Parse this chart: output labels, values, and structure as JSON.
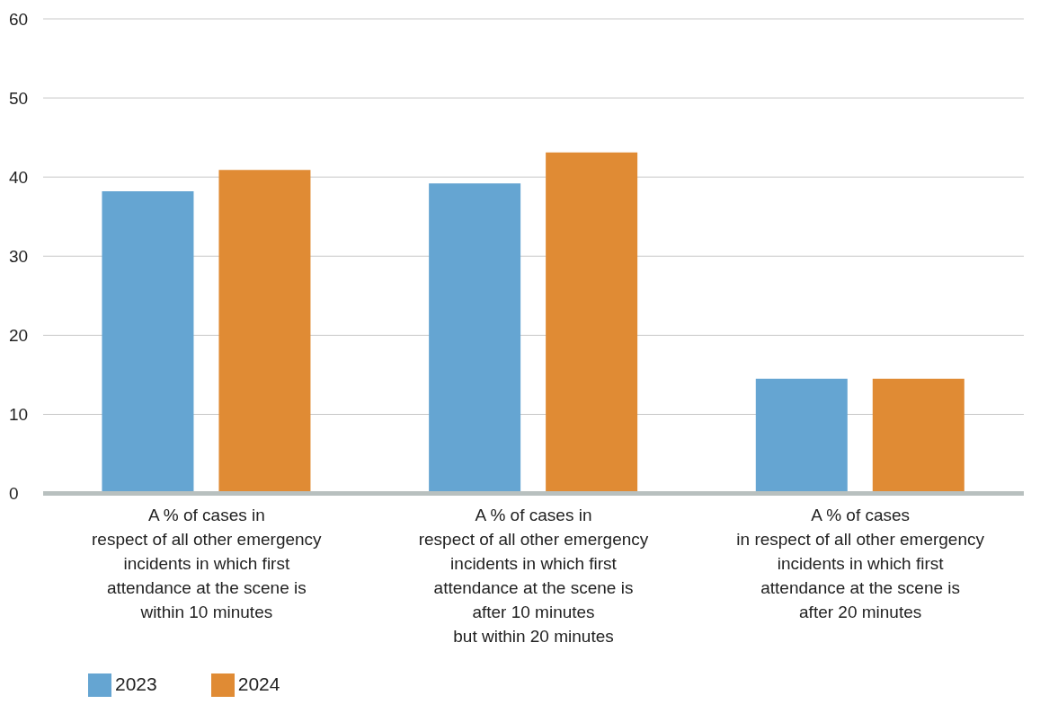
{
  "chart_data": {
    "type": "bar",
    "categories": [
      "A % of cases in\nrespect of all other emergency\nincidents in which first\nattendance at the scene is\nwithin 10 minutes",
      "A % of cases in\nrespect of all other emergency\nincidents in which first\nattendance at the scene is\nafter 10 minutes\nbut within 20 minutes",
      "A % of cases\nin respect of all other emergency\nincidents in which first\nattendance at the scene is\nafter 20 minutes"
    ],
    "series": [
      {
        "name": "2023",
        "color": "#65a5d2",
        "values": [
          38.2,
          39.2,
          14.5
        ]
      },
      {
        "name": "2024",
        "color": "#e08b34",
        "values": [
          40.9,
          43.1,
          14.5
        ]
      }
    ],
    "ylim": [
      0,
      60
    ],
    "yticks": [
      0,
      10,
      20,
      30,
      40,
      50,
      60
    ],
    "grid": "y",
    "legend": "bottom left"
  }
}
